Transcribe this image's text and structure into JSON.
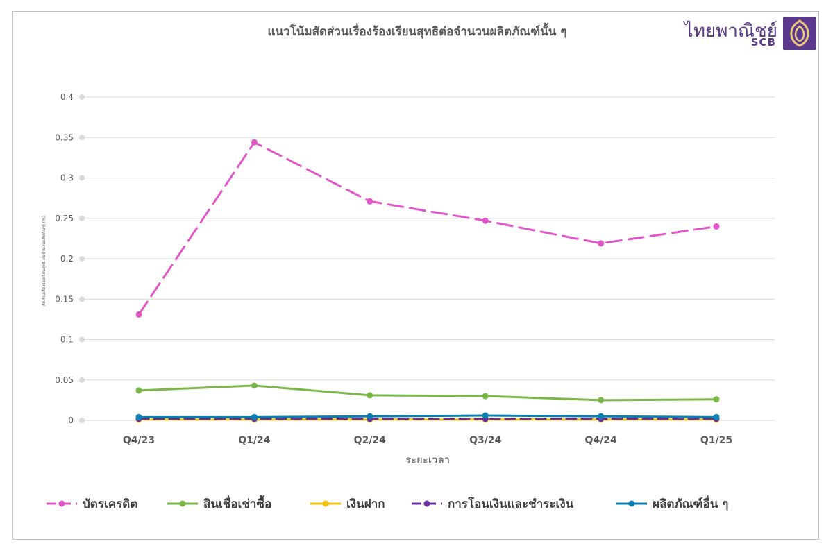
{
  "chart_data": {
    "type": "line",
    "title": "แนวโน้มสัดส่วนเรื่องร้องเรียนสุทธิต่อจำนวนผลิตภัณฑ์นั้น ๆ",
    "xlabel": "ระยะเวลา",
    "ylabel": "สัดส่วนเรื่องร้องเรียนสุทธิ ต่อจำนวนผลิตภัณฑ์ (%)",
    "categories": [
      "Q4/23",
      "Q1/24",
      "Q2/24",
      "Q3/24",
      "Q4/24",
      "Q1/25"
    ],
    "ylim": [
      0,
      0.4
    ],
    "yticks": [
      "0",
      "0.05",
      "0.1",
      "0.15",
      "0.2",
      "0.25",
      "0.3",
      "0.35",
      "0.4"
    ],
    "grid": true,
    "legend_position": "bottom",
    "series": [
      {
        "name": "บัตรเครดิต",
        "color": "#e056c8",
        "dashed": true,
        "values": [
          0.131,
          0.344,
          0.271,
          0.247,
          0.219,
          0.24
        ]
      },
      {
        "name": "สินเชื่อเช่าซื้อ",
        "color": "#7ab648",
        "dashed": false,
        "values": [
          0.037,
          0.043,
          0.031,
          0.03,
          0.025,
          0.026
        ]
      },
      {
        "name": "เงินฝาก",
        "color": "#f2c418",
        "dashed": false,
        "values": [
          0.001,
          0.001,
          0.001,
          0.001,
          0.001,
          0.001
        ]
      },
      {
        "name": "การโอนเงินและชำระเงิน",
        "color": "#6a2ea0",
        "dashed": true,
        "values": [
          0.002,
          0.002,
          0.002,
          0.002,
          0.002,
          0.002
        ]
      },
      {
        "name": "ผลิตภัณฑ์อื่น ๆ",
        "color": "#0a7fb0",
        "dashed": false,
        "values": [
          0.004,
          0.004,
          0.005,
          0.006,
          0.005,
          0.004
        ]
      }
    ]
  },
  "logo": {
    "name_th": "ไทยพาณิชย์",
    "name_en": "SCB",
    "brand_color": "#5b3a8e",
    "icon": "scb-shrine-emblem-icon"
  }
}
